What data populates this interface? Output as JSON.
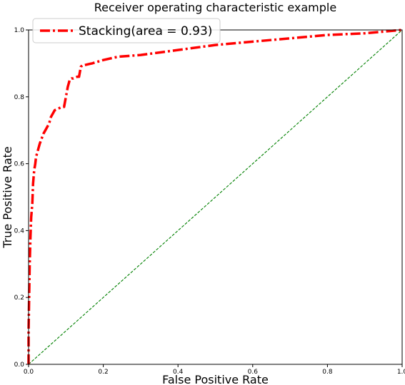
{
  "chart_data": {
    "type": "line",
    "title": "Receiver operating characteristic example",
    "xlabel": "False Positive Rate",
    "ylabel": "True Positive Rate",
    "xlim": [
      0,
      1
    ],
    "ylim": [
      0,
      1
    ],
    "xticks": [
      {
        "value": 0.0,
        "label": "0.0"
      },
      {
        "value": 0.2,
        "label": "0.2"
      },
      {
        "value": 0.4,
        "label": "0.4"
      },
      {
        "value": 0.6,
        "label": "0.6"
      },
      {
        "value": 0.8,
        "label": "0.8"
      },
      {
        "value": 1.0,
        "label": "1.0"
      }
    ],
    "yticks": [
      {
        "value": 0.0,
        "label": "0.0"
      },
      {
        "value": 0.2,
        "label": "0.2"
      },
      {
        "value": 0.4,
        "label": "0.4"
      },
      {
        "value": 0.6,
        "label": "0.6"
      },
      {
        "value": 0.8,
        "label": "0.8"
      },
      {
        "value": 1.0,
        "label": "1.0"
      }
    ],
    "grid": false,
    "legend": {
      "position": "top-left"
    },
    "series": [
      {
        "name": "Stacking(area = 0.93)",
        "color": "#ff0000",
        "style": "dashdot",
        "x": [
          0.0,
          0.0,
          0.003,
          0.005,
          0.007,
          0.01,
          0.012,
          0.015,
          0.018,
          0.02,
          0.025,
          0.03,
          0.04,
          0.05,
          0.055,
          0.06,
          0.065,
          0.07,
          0.08,
          0.09,
          0.095,
          0.1,
          0.105,
          0.11,
          0.115,
          0.12,
          0.13,
          0.135,
          0.14,
          0.145,
          0.15,
          0.17,
          0.2,
          0.24,
          0.3,
          0.4,
          0.5,
          0.6,
          0.7,
          0.8,
          0.9,
          1.0
        ],
        "y": [
          0.0,
          0.1,
          0.3,
          0.38,
          0.44,
          0.48,
          0.54,
          0.58,
          0.6,
          0.62,
          0.64,
          0.66,
          0.69,
          0.71,
          0.72,
          0.74,
          0.75,
          0.76,
          0.765,
          0.77,
          0.77,
          0.8,
          0.83,
          0.85,
          0.855,
          0.855,
          0.86,
          0.86,
          0.89,
          0.895,
          0.895,
          0.9,
          0.91,
          0.92,
          0.925,
          0.94,
          0.955,
          0.965,
          0.975,
          0.985,
          0.99,
          1.0
        ]
      },
      {
        "name": "",
        "color": "#008000",
        "style": "dashed",
        "x": [
          0,
          1
        ],
        "y": [
          0,
          1
        ]
      }
    ]
  }
}
